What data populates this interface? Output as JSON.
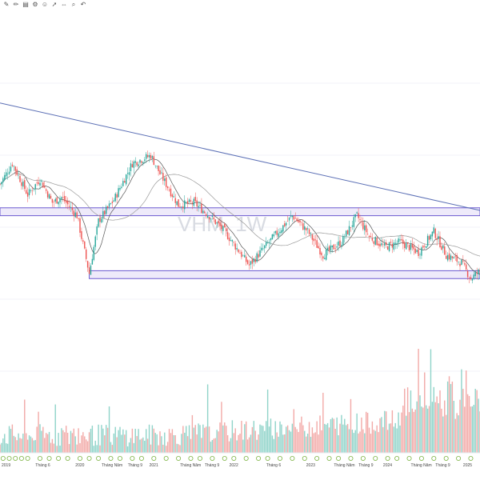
{
  "toolbar": {
    "icons": [
      "drawing-tool-icon",
      "edit-icon",
      "layers-icon",
      "settings-icon",
      "smile-icon",
      "cursor-icon",
      "measure-icon",
      "zoom-icon",
      "undo-icon"
    ]
  },
  "chart_data": {
    "type": "candlestick",
    "watermark": "VHM, 1W",
    "colors": {
      "up": "#26a69a",
      "down": "#ef5350",
      "trendline": "#5b6fb5",
      "zone_fill": "#e3dcf7",
      "zone_stroke": "#6c5bd0",
      "ma_short": "#555555",
      "ma_long": "#999999",
      "volume_up": "#8fd3c9",
      "volume_down": "#f2a9a7"
    },
    "time_labels": [
      "2019",
      "Tháng 6",
      "2020",
      "Tháng Năm",
      "Tháng 9",
      "2021",
      "Tháng Năm",
      "Tháng 9",
      "2022",
      "Tháng 6",
      "2023",
      "Tháng Năm",
      "Tháng 9",
      "2024",
      "Tháng Năm",
      "Tháng 9",
      "2025"
    ],
    "time_label_weeks": [
      0,
      22,
      48,
      65,
      82,
      96,
      116,
      132,
      148,
      172,
      198,
      216,
      232,
      248,
      266,
      282,
      300
    ],
    "event_markers": [
      2,
      6,
      10,
      14,
      18,
      26,
      32,
      38,
      44,
      52,
      58,
      64,
      72,
      78,
      86,
      92,
      100,
      108,
      116,
      124,
      130,
      138,
      146,
      152,
      160,
      168,
      174,
      182,
      190,
      198,
      206,
      214,
      220,
      228,
      236,
      244,
      252,
      258,
      266,
      274,
      282,
      290,
      298,
      306
    ],
    "price_anchors": [
      {
        "week": 0,
        "price": 84
      },
      {
        "week": 8,
        "price": 92
      },
      {
        "week": 18,
        "price": 80
      },
      {
        "week": 26,
        "price": 86
      },
      {
        "week": 34,
        "price": 77
      },
      {
        "week": 40,
        "price": 79
      },
      {
        "week": 50,
        "price": 72
      },
      {
        "week": 58,
        "price": 50
      },
      {
        "week": 64,
        "price": 70
      },
      {
        "week": 74,
        "price": 78
      },
      {
        "week": 86,
        "price": 92
      },
      {
        "week": 98,
        "price": 95
      },
      {
        "week": 104,
        "price": 88
      },
      {
        "week": 116,
        "price": 76
      },
      {
        "week": 126,
        "price": 77
      },
      {
        "week": 136,
        "price": 72
      },
      {
        "week": 146,
        "price": 66
      },
      {
        "week": 162,
        "price": 53
      },
      {
        "week": 172,
        "price": 60
      },
      {
        "week": 184,
        "price": 68
      },
      {
        "week": 190,
        "price": 72
      },
      {
        "week": 200,
        "price": 66
      },
      {
        "week": 210,
        "price": 57
      },
      {
        "week": 222,
        "price": 62
      },
      {
        "week": 232,
        "price": 72
      },
      {
        "week": 240,
        "price": 64
      },
      {
        "week": 250,
        "price": 60
      },
      {
        "week": 260,
        "price": 62
      },
      {
        "week": 272,
        "price": 58
      },
      {
        "week": 282,
        "price": 66
      },
      {
        "week": 290,
        "price": 57
      },
      {
        "week": 300,
        "price": 54
      },
      {
        "week": 306,
        "price": 48
      },
      {
        "week": 312,
        "price": 51
      }
    ],
    "trendline": {
      "from": {
        "week": 0,
        "price": 115
      },
      "to": {
        "week": 312,
        "price": 74
      }
    },
    "resistance_zone": {
      "from_week": 0,
      "to_week": 312,
      "price_low": 72,
      "price_high": 75
    },
    "support_zone": {
      "from_week": 58,
      "to_week": 312,
      "price_low": 48,
      "price_high": 51
    },
    "ylim": [
      20,
      150
    ],
    "xlim": [
      0,
      312
    ]
  }
}
